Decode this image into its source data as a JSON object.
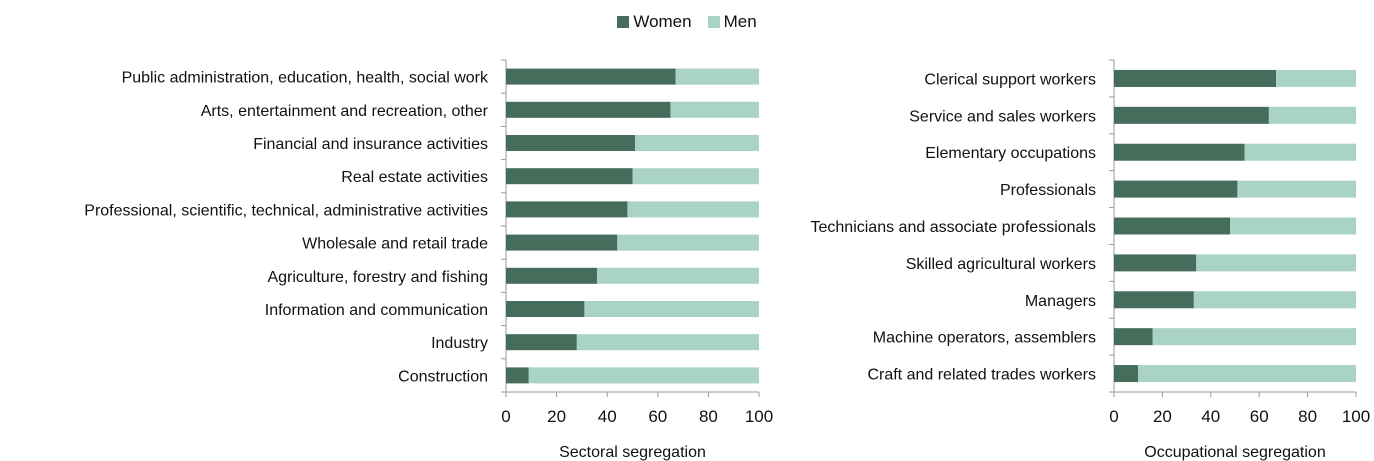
{
  "legend": {
    "women": "Women",
    "men": "Men"
  },
  "colors": {
    "women": "#466c5c",
    "men": "#a9d3c7",
    "axis": "#999999"
  },
  "chart_data": [
    {
      "type": "bar",
      "orientation": "horizontal",
      "stacked": true,
      "xlabel": "Sectoral segregation",
      "xlim": [
        0,
        100
      ],
      "xticks": [
        0,
        20,
        40,
        60,
        80,
        100
      ],
      "categories": [
        "Public administration, education, health, social work",
        "Arts, entertainment and recreation, other",
        "Financial and insurance activities",
        "Real estate activities",
        "Professional, scientific, technical, administrative activities",
        "Wholesale and retail trade",
        "Agriculture, forestry and fishing",
        "Information and communication",
        "Industry",
        "Construction"
      ],
      "series": [
        {
          "name": "Women",
          "values": [
            67,
            65,
            51,
            50,
            48,
            44,
            36,
            31,
            28,
            9
          ]
        },
        {
          "name": "Men",
          "values": [
            33,
            35,
            49,
            50,
            52,
            56,
            64,
            69,
            72,
            91
          ]
        }
      ]
    },
    {
      "type": "bar",
      "orientation": "horizontal",
      "stacked": true,
      "xlabel": "Occupational segregation",
      "xlim": [
        0,
        100
      ],
      "xticks": [
        0,
        20,
        40,
        60,
        80,
        100
      ],
      "categories": [
        "Clerical support workers",
        "Service and sales workers",
        "Elementary occupations",
        "Professionals",
        "Technicians and associate professionals",
        "Skilled agricultural workers",
        "Managers",
        "Machine operators, assemblers",
        "Craft and related trades workers"
      ],
      "series": [
        {
          "name": "Women",
          "values": [
            67,
            64,
            54,
            51,
            48,
            34,
            33,
            16,
            10
          ]
        },
        {
          "name": "Men",
          "values": [
            33,
            36,
            46,
            49,
            52,
            66,
            67,
            84,
            90
          ]
        }
      ]
    }
  ]
}
